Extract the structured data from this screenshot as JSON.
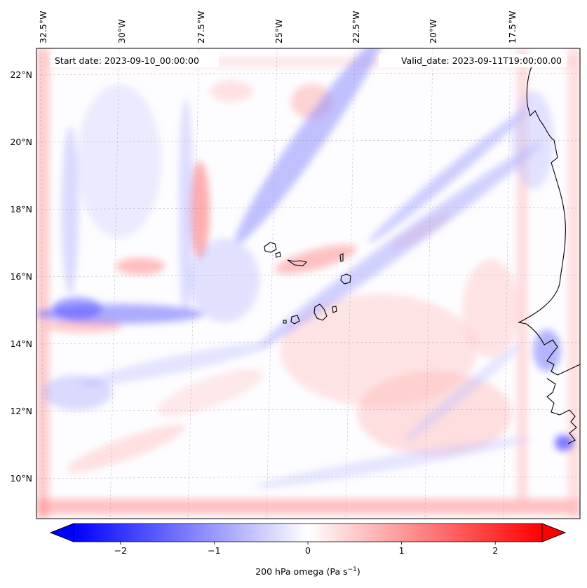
{
  "map": {
    "start_date_label": "Start date: 2023-09-10_00:00:00",
    "valid_date_label": "Valid_date: 2023-09-11T19:00:00.00",
    "longitude_labels": [
      "32.5°W",
      "30°W",
      "27.5°W",
      "25°W",
      "22.5°W",
      "20°W",
      "17.5°W"
    ],
    "latitude_labels": [
      "22°N",
      "20°N",
      "18°N",
      "16°N",
      "14°N",
      "12°N",
      "10°N"
    ],
    "field_colors": {
      "negative": "#0000ff",
      "zero": "#ffffff",
      "positive": "#ff0000"
    }
  },
  "colorbar": {
    "label_prefix": "200 hPa omega (Pa s",
    "label_exponent": "−1",
    "label_suffix": ")",
    "tick_labels": [
      "−2",
      "−1",
      "0",
      "1",
      "2"
    ],
    "range": [
      -2.75,
      2.75
    ],
    "ticks": [
      -2,
      -1,
      0,
      1,
      2
    ]
  }
}
